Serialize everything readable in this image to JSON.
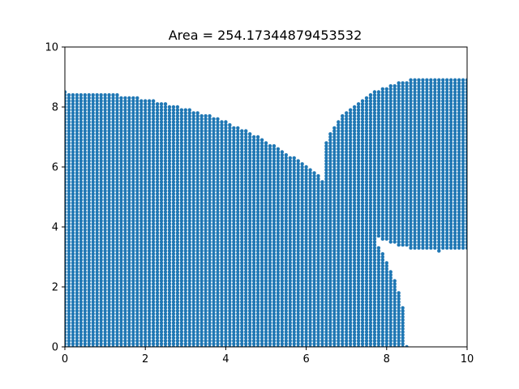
{
  "chart_data": {
    "type": "scatter",
    "title": "Area = 254.17344879453532",
    "xlabel": "",
    "ylabel": "",
    "xlim": [
      0,
      10
    ],
    "ylim": [
      0,
      10
    ],
    "x_ticks": [
      "0",
      "2",
      "4",
      "6",
      "8",
      "10"
    ],
    "y_ticks": [
      "0",
      "2",
      "4",
      "6",
      "8",
      "10"
    ],
    "grid": false,
    "series": [
      {
        "marker_color": "#1f77b4",
        "grid_spacing": 0.1,
        "region_circles": [
          {
            "cx": 0,
            "cy": 0,
            "r": 8.5
          },
          {
            "cx": 9.3,
            "cy": 6.1,
            "r": 2.9
          }
        ]
      }
    ]
  }
}
